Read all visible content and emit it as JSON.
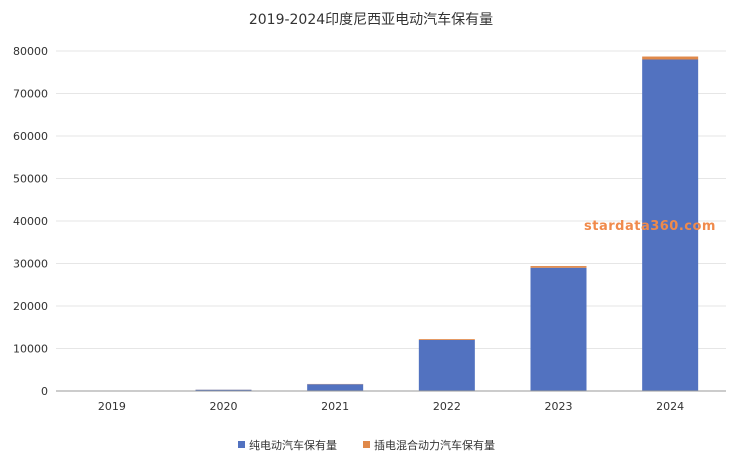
{
  "chart_data": {
    "type": "bar",
    "stacked": true,
    "title": "2019-2024印度尼西亚电动汽车保有量",
    "categories": [
      "2019",
      "2020",
      "2021",
      "2022",
      "2023",
      "2024"
    ],
    "series": [
      {
        "name": "纯电动汽车保有量",
        "color": "#5272c0",
        "values": [
          50,
          300,
          1600,
          12000,
          29000,
          78000
        ]
      },
      {
        "name": "插电混合动力汽车保有量",
        "color": "#e0894a",
        "values": [
          5,
          20,
          60,
          200,
          400,
          700
        ]
      }
    ],
    "ylim": [
      0,
      80000
    ],
    "yticks": [
      0,
      10000,
      20000,
      30000,
      40000,
      50000,
      60000,
      70000,
      80000
    ],
    "grid": true,
    "legend_position": "bottom",
    "watermark": "stardata360.com"
  }
}
